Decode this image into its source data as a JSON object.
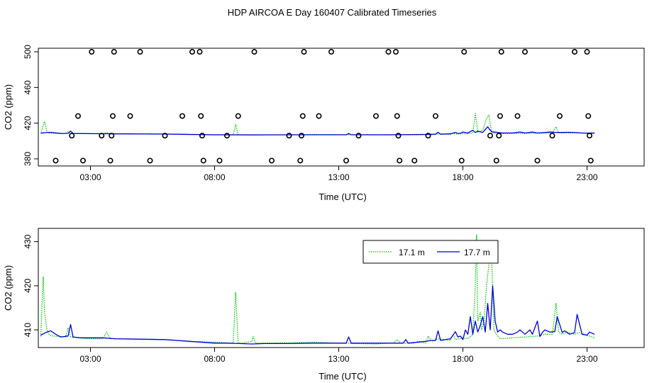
{
  "title": "HDP AIRCOA E  Day 160407  Calibrated Timeseries",
  "colors": {
    "green": "#00cc00",
    "blue": "#0000dd"
  },
  "chart_data": [
    {
      "type": "scatter",
      "xlabel": "Time (UTC)",
      "ylabel": "CO2 (ppm)",
      "xlim": [
        0.9,
        25.3
      ],
      "ylim": [
        372,
        504
      ],
      "xticks": [
        {
          "v": 3,
          "label": "03:00"
        },
        {
          "v": 8,
          "label": "08:00"
        },
        {
          "v": 13,
          "label": "13:00"
        },
        {
          "v": 18,
          "label": "18:00"
        },
        {
          "v": 23,
          "label": "23:00"
        }
      ],
      "yticks": [
        {
          "v": 380,
          "label": "380"
        },
        {
          "v": 420,
          "label": "420"
        },
        {
          "v": 460,
          "label": "460"
        },
        {
          "v": 500,
          "label": "500"
        }
      ],
      "calibration_points": [
        {
          "x": 1.6,
          "y": 378
        },
        {
          "x": 2.25,
          "y": 406
        },
        {
          "x": 2.5,
          "y": 428
        },
        {
          "x": 3.05,
          "y": 500
        },
        {
          "x": 2.7,
          "y": 378
        },
        {
          "x": 3.45,
          "y": 406
        },
        {
          "x": 3.8,
          "y": 378
        },
        {
          "x": 3.85,
          "y": 406
        },
        {
          "x": 3.9,
          "y": 428
        },
        {
          "x": 3.95,
          "y": 500
        },
        {
          "x": 4.6,
          "y": 428
        },
        {
          "x": 5.0,
          "y": 500
        },
        {
          "x": 5.4,
          "y": 378
        },
        {
          "x": 6.0,
          "y": 406
        },
        {
          "x": 6.7,
          "y": 428
        },
        {
          "x": 7.1,
          "y": 500
        },
        {
          "x": 7.4,
          "y": 500
        },
        {
          "x": 7.45,
          "y": 428
        },
        {
          "x": 7.5,
          "y": 406
        },
        {
          "x": 7.55,
          "y": 378
        },
        {
          "x": 8.2,
          "y": 378
        },
        {
          "x": 8.5,
          "y": 406
        },
        {
          "x": 8.95,
          "y": 428
        },
        {
          "x": 9.6,
          "y": 500
        },
        {
          "x": 10.3,
          "y": 378
        },
        {
          "x": 11.0,
          "y": 406
        },
        {
          "x": 11.45,
          "y": 378
        },
        {
          "x": 11.5,
          "y": 406
        },
        {
          "x": 11.55,
          "y": 428
        },
        {
          "x": 11.6,
          "y": 500
        },
        {
          "x": 12.2,
          "y": 428
        },
        {
          "x": 12.7,
          "y": 500
        },
        {
          "x": 13.3,
          "y": 378
        },
        {
          "x": 13.8,
          "y": 406
        },
        {
          "x": 14.5,
          "y": 428
        },
        {
          "x": 15.0,
          "y": 500
        },
        {
          "x": 15.3,
          "y": 500
        },
        {
          "x": 15.35,
          "y": 428
        },
        {
          "x": 15.4,
          "y": 406
        },
        {
          "x": 15.45,
          "y": 378
        },
        {
          "x": 16.05,
          "y": 378
        },
        {
          "x": 16.6,
          "y": 406
        },
        {
          "x": 16.9,
          "y": 428
        },
        {
          "x": 17.95,
          "y": 378
        },
        {
          "x": 18.05,
          "y": 500
        },
        {
          "x": 19.1,
          "y": 406
        },
        {
          "x": 19.35,
          "y": 378
        },
        {
          "x": 19.45,
          "y": 406
        },
        {
          "x": 19.5,
          "y": 428
        },
        {
          "x": 19.55,
          "y": 500
        },
        {
          "x": 20.2,
          "y": 428
        },
        {
          "x": 20.5,
          "y": 500
        },
        {
          "x": 21.0,
          "y": 378
        },
        {
          "x": 21.6,
          "y": 406
        },
        {
          "x": 21.9,
          "y": 428
        },
        {
          "x": 22.5,
          "y": 500
        },
        {
          "x": 23.0,
          "y": 500
        },
        {
          "x": 23.05,
          "y": 428
        },
        {
          "x": 23.1,
          "y": 406
        },
        {
          "x": 23.15,
          "y": 378
        }
      ],
      "series": [
        {
          "color": "#00cc00",
          "dotted": true,
          "x": [
            1.0,
            1.15,
            1.25,
            1.35,
            1.5,
            2.0,
            2.1,
            2.2,
            3.5,
            3.65,
            3.8,
            6.0,
            8.0,
            8.75,
            8.85,
            8.95,
            9.5,
            12.0,
            15.0,
            16.7,
            17.0,
            17.5,
            17.6,
            17.7,
            17.85,
            18.0,
            18.2,
            18.4,
            18.5,
            18.6,
            18.8,
            18.95,
            19.05,
            19.15,
            19.25,
            19.35,
            19.5,
            20.0,
            21.0,
            21.6,
            21.75,
            21.85,
            22.0,
            22.5,
            23.0,
            23.3
          ],
          "y": [
            408.5,
            422,
            410,
            408.8,
            408.6,
            408.4,
            410.5,
            408.4,
            408.0,
            409.5,
            408.0,
            407.8,
            406.8,
            407.0,
            418.5,
            407.0,
            406.8,
            407.2,
            406.8,
            407.0,
            407.8,
            407.6,
            409.0,
            407.8,
            408.0,
            408.2,
            408.0,
            409.0,
            431.0,
            410.0,
            412.0,
            425.0,
            429.0,
            410.0,
            409.0,
            408.0,
            408.2,
            408.4,
            408.6,
            409.0,
            416.0,
            409.5,
            409.0,
            409.0,
            408.8,
            408.2
          ]
        },
        {
          "color": "#0000dd",
          "dotted": false,
          "x": [
            1.0,
            1.2,
            1.4,
            1.8,
            2.1,
            2.2,
            2.3,
            3.5,
            4.0,
            6.0,
            8.0,
            9.5,
            12.0,
            13.3,
            13.4,
            13.5,
            15.0,
            16.5,
            16.9,
            17.0,
            17.1,
            17.5,
            17.7,
            17.8,
            17.9,
            18.0,
            18.2,
            18.4,
            18.5,
            18.6,
            18.8,
            19.0,
            19.1,
            19.2,
            19.3,
            19.4,
            19.6,
            20.0,
            20.3,
            20.5,
            20.8,
            21.0,
            21.2,
            21.5,
            21.8,
            22.0,
            22.3,
            22.6,
            22.8,
            23.0,
            23.3
          ],
          "y": [
            408.8,
            409.4,
            409.8,
            408.4,
            408.6,
            411.2,
            408.4,
            408.2,
            408.0,
            407.8,
            407.0,
            406.8,
            407.0,
            407.0,
            408.4,
            407.0,
            407.0,
            407.4,
            407.6,
            409.8,
            407.6,
            408.0,
            409.6,
            408.4,
            408.6,
            410.0,
            409.0,
            412.0,
            409.5,
            411.0,
            409.5,
            416.0,
            412.0,
            410.0,
            410.0,
            409.5,
            409.0,
            409.0,
            410.0,
            409.0,
            410.0,
            409.0,
            409.4,
            410.0,
            409.5,
            409.6,
            409.8,
            409.4,
            409.0,
            408.8,
            409.0
          ]
        }
      ]
    },
    {
      "type": "line",
      "xlabel": "Time (UTC)",
      "ylabel": "CO2 (ppm)",
      "xlim": [
        0.9,
        25.3
      ],
      "ylim": [
        406,
        433
      ],
      "xticks": [
        {
          "v": 3,
          "label": "03:00"
        },
        {
          "v": 8,
          "label": "08:00"
        },
        {
          "v": 13,
          "label": "13:00"
        },
        {
          "v": 18,
          "label": "18:00"
        },
        {
          "v": 23,
          "label": "23:00"
        }
      ],
      "yticks": [
        {
          "v": 410,
          "label": "410"
        },
        {
          "v": 420,
          "label": "420"
        },
        {
          "v": 430,
          "label": "430"
        }
      ],
      "legend": "top-right",
      "series": [
        {
          "name": "17.1 m",
          "color": "#00cc00",
          "dotted": true,
          "x": [
            1.0,
            1.05,
            1.1,
            1.15,
            1.25,
            1.35,
            1.5,
            2.0,
            2.1,
            2.2,
            2.9,
            3.5,
            3.65,
            3.8,
            6.0,
            7.0,
            8.0,
            8.75,
            8.85,
            8.95,
            9.1,
            9.5,
            9.55,
            9.65,
            10.0,
            12.0,
            13.0,
            14.5,
            15.0,
            15.2,
            15.35,
            15.5,
            16.0,
            16.2,
            16.5,
            16.6,
            16.75,
            17.0,
            17.5,
            17.6,
            17.7,
            17.85,
            18.0,
            18.2,
            18.4,
            18.5,
            18.55,
            18.6,
            18.7,
            18.75,
            18.85,
            18.95,
            19.05,
            19.15,
            19.25,
            19.35,
            19.5,
            20.0,
            20.5,
            21.0,
            21.3,
            21.6,
            21.75,
            21.85,
            22.0,
            22.2,
            22.5,
            22.7,
            23.0,
            23.3
          ],
          "y": [
            408.5,
            416.0,
            422.0,
            414.0,
            410.0,
            408.8,
            408.6,
            408.4,
            410.5,
            408.4,
            408.0,
            408.0,
            409.5,
            408.0,
            407.8,
            407.4,
            407.2,
            407.0,
            418.5,
            407.0,
            407.0,
            407.4,
            408.5,
            407.0,
            407.0,
            407.2,
            407.0,
            406.8,
            407.0,
            407.0,
            407.8,
            407.0,
            407.0,
            407.4,
            407.0,
            408.6,
            407.4,
            408.0,
            407.6,
            409.0,
            407.8,
            408.0,
            408.2,
            408.0,
            409.0,
            420.0,
            431.5,
            412.0,
            414.0,
            410.0,
            412.0,
            420.0,
            425.0,
            428.0,
            410.0,
            409.0,
            408.0,
            408.2,
            408.4,
            408.6,
            409.0,
            409.0,
            416.0,
            409.5,
            409.0,
            409.5,
            409.0,
            409.4,
            408.8,
            408.2
          ]
        },
        {
          "name": "17.7 m",
          "color": "#0000dd",
          "dotted": false,
          "x": [
            1.0,
            1.2,
            1.4,
            1.6,
            1.8,
            2.1,
            2.2,
            2.3,
            2.6,
            3.0,
            3.5,
            4.0,
            5.0,
            6.0,
            7.0,
            8.0,
            8.5,
            9.0,
            9.5,
            10.0,
            11.0,
            12.0,
            12.8,
            13.3,
            13.4,
            13.5,
            14.0,
            15.0,
            15.6,
            15.7,
            15.8,
            16.5,
            16.7,
            16.9,
            17.0,
            17.1,
            17.5,
            17.7,
            17.8,
            17.9,
            18.0,
            18.1,
            18.2,
            18.3,
            18.4,
            18.5,
            18.6,
            18.7,
            18.8,
            18.9,
            19.0,
            19.1,
            19.2,
            19.3,
            19.4,
            19.5,
            19.6,
            19.8,
            20.0,
            20.2,
            20.3,
            20.5,
            20.7,
            20.8,
            21.0,
            21.1,
            21.2,
            21.3,
            21.5,
            21.7,
            21.8,
            22.0,
            22.1,
            22.3,
            22.5,
            22.6,
            22.8,
            23.0,
            23.1,
            23.3
          ],
          "y": [
            408.8,
            409.4,
            409.8,
            409.0,
            408.4,
            408.6,
            411.2,
            408.4,
            408.2,
            408.2,
            408.2,
            408.0,
            407.9,
            407.8,
            407.4,
            407.0,
            407.0,
            406.9,
            406.8,
            406.9,
            406.9,
            407.0,
            407.0,
            407.0,
            408.4,
            407.0,
            407.0,
            407.0,
            407.0,
            407.8,
            407.0,
            407.4,
            407.6,
            407.6,
            409.8,
            407.6,
            408.0,
            409.6,
            408.4,
            408.6,
            407.8,
            410.0,
            409.0,
            413.0,
            409.0,
            412.0,
            409.5,
            411.0,
            413.0,
            409.5,
            416.0,
            410.0,
            420.0,
            412.0,
            409.5,
            410.0,
            409.5,
            409.0,
            409.0,
            409.5,
            410.0,
            409.0,
            410.0,
            409.0,
            412.0,
            408.5,
            409.4,
            410.0,
            409.5,
            409.6,
            413.0,
            409.4,
            409.8,
            409.0,
            409.4,
            413.5,
            409.0,
            408.8,
            409.5,
            409.0
          ]
        }
      ]
    }
  ]
}
